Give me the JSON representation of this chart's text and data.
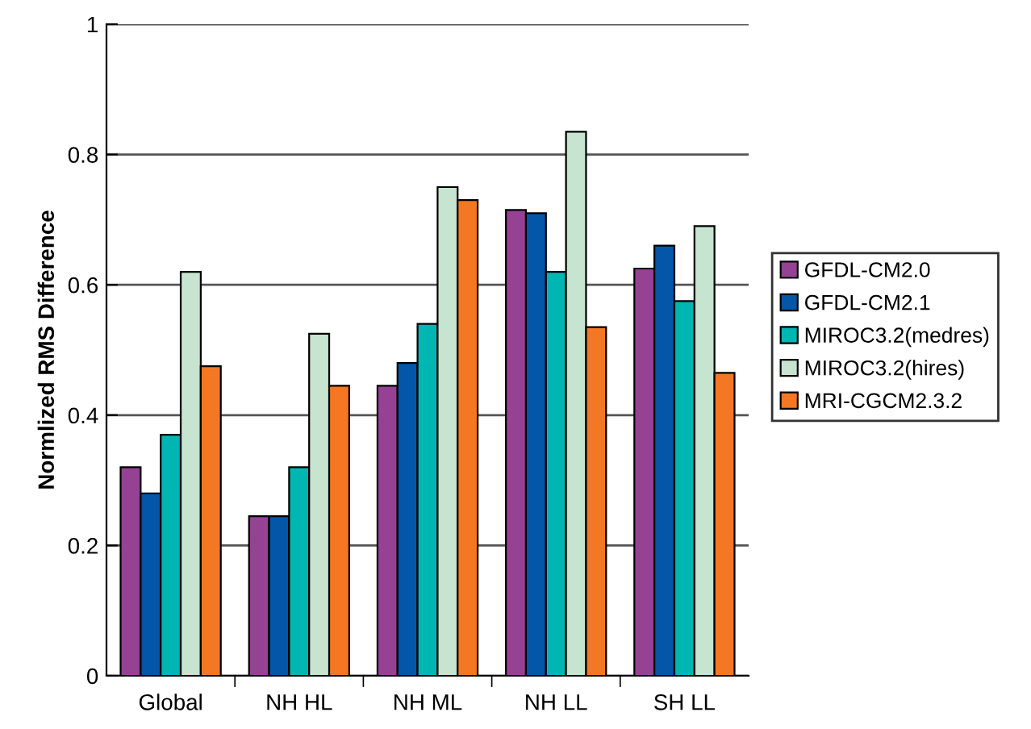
{
  "chart_data": {
    "type": "bar",
    "ylabel": "Normlized RMS Difference",
    "categories": [
      "Global",
      "NH HL",
      "NH ML",
      "NH LL",
      "SH LL"
    ],
    "series": [
      {
        "name": "GFDL-CM2.0",
        "color": "#954295",
        "values": [
          0.32,
          0.245,
          0.445,
          0.715,
          0.625
        ]
      },
      {
        "name": "GFDL-CM2.1",
        "color": "#0456a8",
        "values": [
          0.28,
          0.245,
          0.48,
          0.71,
          0.66
        ]
      },
      {
        "name": "MIROC3.2(medres)",
        "color": "#00b6b3",
        "values": [
          0.37,
          0.32,
          0.54,
          0.62,
          0.575
        ]
      },
      {
        "name": "MIROC3.2(hires)",
        "color": "#c6e4cf",
        "values": [
          0.62,
          0.525,
          0.75,
          0.835,
          0.69
        ]
      },
      {
        "name": "MRI-CGCM2.3.2",
        "color": "#f47823",
        "values": [
          0.475,
          0.445,
          0.73,
          0.535,
          0.465
        ]
      }
    ],
    "ylim": [
      0,
      1
    ],
    "yticks": [
      0,
      0.2,
      0.4,
      0.6,
      0.8,
      1
    ],
    "grid": "y",
    "legend": "right"
  }
}
